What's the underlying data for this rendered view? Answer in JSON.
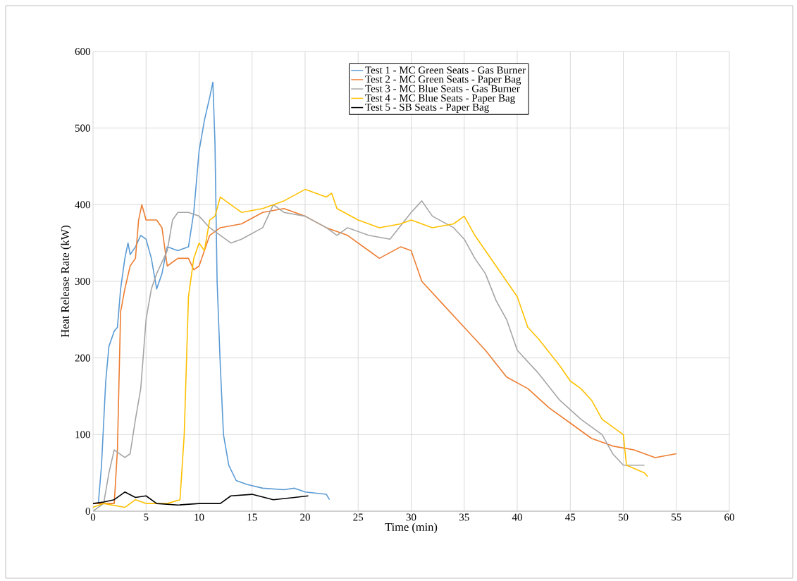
{
  "chart_data": {
    "type": "line",
    "xlabel": "Time (min)",
    "ylabel": "Heat Release Rate (kW)",
    "xlim": [
      0,
      60
    ],
    "ylim": [
      0,
      600
    ],
    "xticks": [
      0,
      5,
      10,
      15,
      20,
      25,
      30,
      35,
      40,
      45,
      50,
      55,
      60
    ],
    "yticks": [
      0,
      100,
      200,
      300,
      400,
      500,
      600
    ],
    "grid": true,
    "legend": "top right",
    "series": [
      {
        "name": "Test 1 - MC Green Seats - Gas Burner",
        "color": "#5b9bd5",
        "x": [
          0.5,
          0.8,
          1.2,
          1.5,
          2,
          2.3,
          2.6,
          3,
          3.3,
          3.5,
          4,
          4.5,
          5,
          5.5,
          6,
          6.5,
          7,
          8,
          9,
          9.5,
          10,
          10.5,
          11,
          11.3,
          11.5,
          11.7,
          12,
          12.3,
          12.8,
          13.5,
          14.5,
          16,
          18,
          19,
          20,
          22,
          22.3
        ],
        "values": [
          10,
          60,
          170,
          215,
          235,
          240,
          290,
          330,
          350,
          335,
          345,
          360,
          355,
          330,
          290,
          310,
          345,
          340,
          345,
          390,
          470,
          510,
          540,
          560,
          480,
          300,
          190,
          100,
          60,
          40,
          35,
          30,
          28,
          30,
          25,
          22,
          15
        ]
      },
      {
        "name": "Test 2 - MC Green Seats - Paper Bag",
        "color": "#ed7d31",
        "x": [
          0,
          2,
          2.3,
          2.6,
          3,
          3.5,
          4,
          4.3,
          4.6,
          5,
          6,
          6.5,
          7,
          8,
          9,
          9.5,
          10,
          11,
          12,
          14,
          16,
          18,
          20,
          22,
          24,
          26,
          27,
          29,
          30,
          31,
          33,
          35,
          37,
          39,
          41,
          43,
          45,
          47,
          49,
          51,
          53,
          55
        ],
        "values": [
          10,
          10,
          80,
          260,
          290,
          320,
          330,
          380,
          400,
          380,
          380,
          370,
          320,
          330,
          330,
          315,
          320,
          360,
          370,
          375,
          390,
          395,
          385,
          370,
          360,
          340,
          330,
          345,
          340,
          300,
          270,
          240,
          210,
          175,
          160,
          135,
          115,
          95,
          85,
          80,
          70,
          75
        ]
      },
      {
        "name": "Test 3 - MC Blue Seats - Gas Burner",
        "color": "#a5a5a5",
        "x": [
          0,
          1,
          1.5,
          2,
          3,
          3.5,
          4,
          4.5,
          5,
          5.5,
          6,
          7,
          7.5,
          8,
          9,
          10,
          11,
          12,
          13,
          14,
          16,
          17,
          18,
          20,
          22,
          23,
          24,
          26,
          28,
          30,
          31,
          32,
          34,
          35,
          36,
          37,
          38,
          39,
          40,
          42,
          44,
          46,
          48,
          49,
          50,
          52
        ],
        "values": [
          0,
          10,
          50,
          80,
          70,
          75,
          120,
          160,
          250,
          290,
          310,
          340,
          380,
          390,
          390,
          385,
          370,
          360,
          350,
          355,
          370,
          400,
          390,
          385,
          370,
          360,
          370,
          360,
          355,
          390,
          405,
          385,
          370,
          355,
          330,
          310,
          275,
          250,
          210,
          180,
          145,
          120,
          100,
          75,
          60,
          60
        ]
      },
      {
        "name": "Test 4 - MC Blue Seats - Paper Bag",
        "color": "#ffc000",
        "x": [
          0,
          1,
          3,
          4,
          5,
          7,
          8.2,
          8.6,
          9,
          9.5,
          10,
          10.5,
          11,
          11.5,
          12,
          13,
          14,
          16,
          18,
          20,
          22,
          22.5,
          23,
          25,
          27,
          29,
          30,
          32,
          34,
          35,
          36,
          37,
          38,
          40,
          41,
          42,
          44,
          45,
          46,
          47,
          48,
          50,
          50.3,
          52,
          52.3
        ],
        "values": [
          5,
          10,
          5,
          15,
          10,
          10,
          15,
          100,
          280,
          330,
          350,
          340,
          380,
          385,
          410,
          400,
          390,
          395,
          405,
          420,
          410,
          415,
          395,
          380,
          370,
          375,
          380,
          370,
          375,
          385,
          360,
          340,
          320,
          280,
          240,
          225,
          190,
          170,
          160,
          145,
          120,
          100,
          60,
          50,
          45
        ]
      },
      {
        "name": "Test 5 - SB Seats - Paper Bag",
        "color": "#000000",
        "x": [
          0,
          1,
          2,
          3,
          4,
          5,
          6,
          8,
          10,
          12,
          13,
          15,
          17,
          19,
          20.3
        ],
        "values": [
          10,
          12,
          15,
          25,
          18,
          20,
          10,
          8,
          10,
          10,
          20,
          22,
          15,
          18,
          20
        ]
      }
    ]
  }
}
